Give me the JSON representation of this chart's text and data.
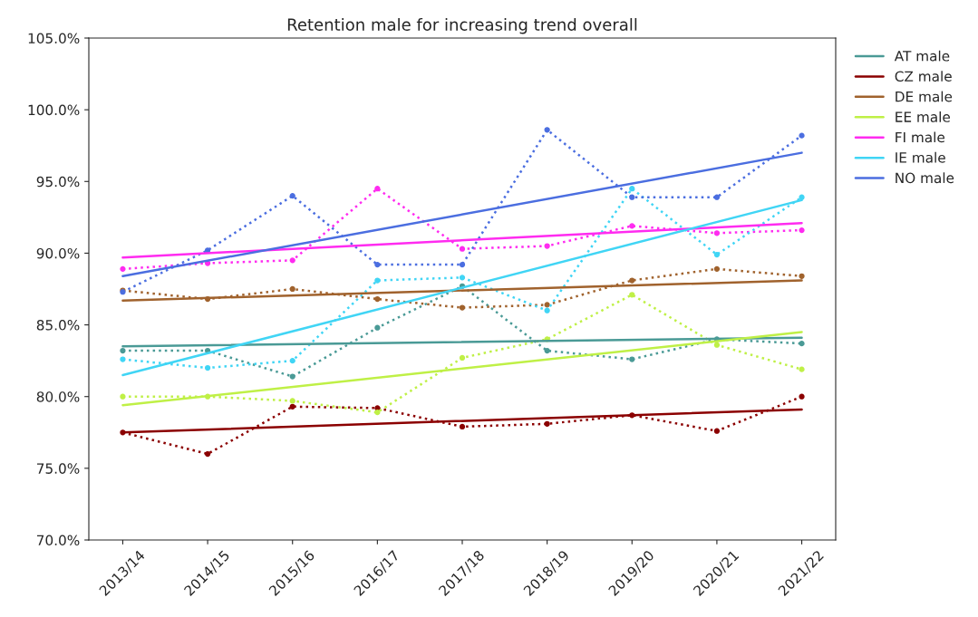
{
  "chart_data": {
    "type": "line",
    "title": "Retention male for increasing trend overall",
    "categories": [
      "2013/14",
      "2014/15",
      "2015/16",
      "2016/17",
      "2017/18",
      "2018/19",
      "2019/20",
      "2020/21",
      "2021/22"
    ],
    "series": [
      {
        "color": "#4a9a96",
        "line_style": "dotted",
        "marker": "circle",
        "values": [
          83.2,
          83.2,
          81.4,
          84.8,
          87.7,
          83.2,
          82.6,
          84.0,
          83.7
        ]
      },
      {
        "color": "#8b0000",
        "line_style": "dotted",
        "marker": "circle",
        "values": [
          77.5,
          76.0,
          79.3,
          79.2,
          77.9,
          78.1,
          78.7,
          77.6,
          80.0
        ]
      },
      {
        "color": "#a0622d",
        "line_style": "dotted",
        "marker": "circle",
        "values": [
          87.4,
          86.8,
          87.5,
          86.8,
          86.2,
          86.4,
          88.1,
          88.9,
          88.4
        ]
      },
      {
        "color": "#bff046",
        "line_style": "dotted",
        "marker": "circle",
        "values": [
          80.0,
          80.0,
          79.7,
          78.9,
          82.7,
          84.0,
          87.1,
          83.6,
          81.9
        ]
      },
      {
        "color": "#ff2bf0",
        "line_style": "dotted",
        "marker": "circle",
        "values": [
          88.9,
          89.3,
          89.5,
          94.5,
          90.3,
          90.5,
          91.9,
          91.4,
          91.6
        ]
      },
      {
        "color": "#40d5f5",
        "line_style": "dotted",
        "marker": "circle",
        "values": [
          82.6,
          82.0,
          82.5,
          88.1,
          88.3,
          86.0,
          94.5,
          89.9,
          93.9
        ]
      },
      {
        "color": "#4b6ee0",
        "line_style": "dotted",
        "marker": "circle",
        "values": [
          87.3,
          90.2,
          94.0,
          89.2,
          89.2,
          98.6,
          93.9,
          93.9,
          98.2
        ]
      },
      {
        "name": "AT male",
        "color": "#4a9a96",
        "line_style": "solid",
        "marker": "none",
        "x": [
          "2013/14",
          "2021/22"
        ],
        "values": [
          83.5,
          84.1
        ]
      },
      {
        "name": "CZ male",
        "color": "#8b0000",
        "line_style": "solid",
        "marker": "none",
        "x": [
          "2013/14",
          "2021/22"
        ],
        "values": [
          77.5,
          79.1
        ]
      },
      {
        "name": "DE male",
        "color": "#a0622d",
        "line_style": "solid",
        "marker": "none",
        "x": [
          "2013/14",
          "2021/22"
        ],
        "values": [
          86.7,
          88.1
        ]
      },
      {
        "name": "EE male",
        "color": "#bff046",
        "line_style": "solid",
        "marker": "none",
        "x": [
          "2013/14",
          "2021/22"
        ],
        "values": [
          79.4,
          84.5
        ]
      },
      {
        "name": "FI male",
        "color": "#ff2bf0",
        "line_style": "solid",
        "marker": "none",
        "x": [
          "2013/14",
          "2021/22"
        ],
        "values": [
          89.7,
          92.1
        ]
      },
      {
        "name": "IE male",
        "color": "#40d5f5",
        "line_style": "solid",
        "marker": "none",
        "x": [
          "2013/14",
          "2021/22"
        ],
        "values": [
          81.5,
          93.7
        ]
      },
      {
        "name": "NO male",
        "color": "#4b6ee0",
        "line_style": "solid",
        "marker": "none",
        "x": [
          "2013/14",
          "2021/22"
        ],
        "values": [
          88.4,
          97.0
        ]
      }
    ],
    "ylim": [
      70,
      105
    ],
    "yticks": [
      {
        "value": 70,
        "label": "70.0%"
      },
      {
        "value": 75,
        "label": "75.0%"
      },
      {
        "value": 80,
        "label": "80.0%"
      },
      {
        "value": 85,
        "label": "85.0%"
      },
      {
        "value": 90,
        "label": "90.0%"
      },
      {
        "value": 95,
        "label": "95.0%"
      },
      {
        "value": 100,
        "label": "100.0%"
      },
      {
        "value": 105,
        "label": "105.0%"
      }
    ],
    "grid": false,
    "legend": "top right"
  }
}
